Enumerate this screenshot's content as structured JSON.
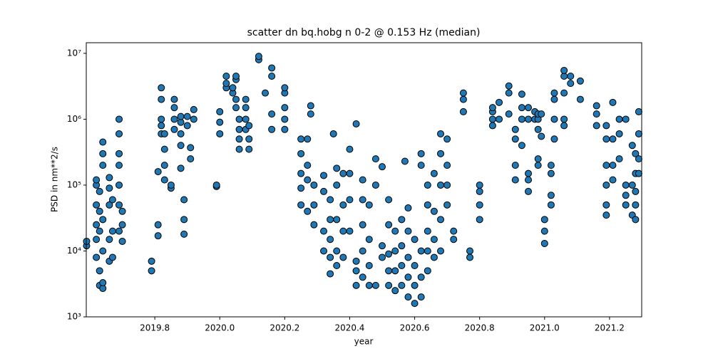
{
  "chart_data": {
    "type": "scatter",
    "title": "scatter dn bq.hobg n 0-2 @ 0.153 Hz (median)",
    "x_label": "year",
    "y_label": "PSD in nm**2/s",
    "yscale": "log",
    "color": "#1f77b4",
    "edgecolor": "#000000",
    "xlim": [
      2019.589,
      2021.299
    ],
    "ylim": [
      1000,
      14500000
    ],
    "xticks": [
      2019.8,
      {
        "value": 2020,
        "label": "2020.0"
      },
      2020.2,
      2020.4,
      2020.6,
      2020.8,
      {
        "value": 2021,
        "label": "2021.0"
      },
      2021.2
    ],
    "yticks": [
      {
        "value": 1000,
        "label": "10³"
      },
      {
        "value": 10000,
        "label": "10⁴"
      },
      {
        "value": 100000,
        "label": "10⁵"
      },
      {
        "value": 1000000,
        "label": "10⁶"
      },
      {
        "value": 10000000,
        "label": "10⁷"
      }
    ],
    "x": [
      2019.59,
      2019.59,
      2019.62,
      2019.62,
      2019.62,
      2019.62,
      2019.62,
      2019.62,
      2019.63,
      2019.63,
      2019.63,
      2019.63,
      2019.63,
      2019.64,
      2019.64,
      2019.64,
      2019.64,
      2019.64,
      2019.64,
      2019.64,
      2019.66,
      2019.66,
      2019.66,
      2019.66,
      2019.66,
      2019.67,
      2019.67,
      2019.67,
      2019.69,
      2019.69,
      2019.69,
      2019.69,
      2019.69,
      2019.69,
      2019.69,
      2019.7,
      2019.7,
      2019.7,
      2019.79,
      2019.79,
      2019.81,
      2019.81,
      2019.81,
      2019.82,
      2019.82,
      2019.82,
      2019.82,
      2019.82,
      2019.83,
      2019.83,
      2019.83,
      2019.83,
      2019.85,
      2019.85,
      2019.86,
      2019.86,
      2019.86,
      2019.86,
      2019.88,
      2019.88,
      2019.88,
      2019.88,
      2019.88,
      2019.89,
      2019.89,
      2019.89,
      2019.9,
      2019.9,
      2019.91,
      2019.91,
      2019.92,
      2019.92,
      2019.99,
      2019.99,
      2020.0,
      2020.0,
      2020.0,
      2020.02,
      2020.02,
      2020.02,
      2020.04,
      2020.04,
      2020.05,
      2020.05,
      2020.05,
      2020.05,
      2020.06,
      2020.06,
      2020.06,
      2020.06,
      2020.08,
      2020.08,
      2020.08,
      2020.08,
      2020.09,
      2020.09,
      2020.09,
      2020.12,
      2020.12,
      2020.14,
      2020.16,
      2020.16,
      2020.16,
      2020.16,
      2020.2,
      2020.2,
      2020.2,
      2020.2,
      2020.2,
      2020.25,
      2020.25,
      2020.25,
      2020.25,
      2020.25,
      2020.27,
      2020.27,
      2020.27,
      2020.27,
      2020.28,
      2020.28,
      2020.29,
      2020.29,
      2020.29,
      2020.32,
      2020.32,
      2020.32,
      2020.32,
      2020.34,
      2020.34,
      2020.34,
      2020.34,
      2020.34,
      2020.35,
      2020.36,
      2020.36,
      2020.36,
      2020.36,
      2020.36,
      2020.38,
      2020.38,
      2020.38,
      2020.38,
      2020.4,
      2020.4,
      2020.4,
      2020.4,
      2020.42,
      2020.42,
      2020.42,
      2020.42,
      2020.44,
      2020.44,
      2020.44,
      2020.44,
      2020.44,
      2020.46,
      2020.46,
      2020.46,
      2020.46,
      2020.48,
      2020.48,
      2020.48,
      2020.5,
      2020.5,
      2020.5,
      2020.52,
      2020.52,
      2020.52,
      2020.52,
      2020.52,
      2020.54,
      2020.54,
      2020.54,
      2020.54,
      2020.56,
      2020.56,
      2020.56,
      2020.56,
      2020.57,
      2020.58,
      2020.58,
      2020.58,
      2020.58,
      2020.58,
      2020.6,
      2020.6,
      2020.6,
      2020.6,
      2020.62,
      2020.62,
      2020.62,
      2020.62,
      2020.62,
      2020.64,
      2020.64,
      2020.64,
      2020.64,
      2020.64,
      2020.66,
      2020.66,
      2020.66,
      2020.66,
      2020.68,
      2020.68,
      2020.68,
      2020.68,
      2020.68,
      2020.7,
      2020.7,
      2020.7,
      2020.7,
      2020.72,
      2020.72,
      2020.75,
      2020.75,
      2020.75,
      2020.77,
      2020.77,
      2020.8,
      2020.8,
      2020.8,
      2020.8,
      2020.84,
      2020.84,
      2020.84,
      2020.84,
      2020.86,
      2020.86,
      2020.89,
      2020.89,
      2020.89,
      2020.91,
      2020.91,
      2020.91,
      2020.91,
      2020.93,
      2020.93,
      2020.93,
      2020.93,
      2020.95,
      2020.95,
      2020.95,
      2020.95,
      2020.95,
      2020.97,
      2020.97,
      2020.98,
      2020.98,
      2020.98,
      2020.98,
      2020.98,
      2021.0,
      2021.0,
      2021.0,
      2020.99,
      2020.99,
      2021.02,
      2021.02,
      2021.02,
      2021.02,
      2021.03,
      2021.03,
      2021.03,
      2021.03,
      2021.06,
      2021.06,
      2021.06,
      2021.06,
      2021.06,
      2021.08,
      2021.08,
      2021.11,
      2021.11,
      2021.16,
      2021.16,
      2021.16,
      2021.19,
      2021.19,
      2021.19,
      2021.19,
      2021.19,
      2021.19,
      2021.21,
      2021.21,
      2021.21,
      2021.21,
      2021.23,
      2021.23,
      2021.23,
      2021.25,
      2021.25,
      2021.25,
      2021.25,
      2021.27,
      2021.27,
      2021.27,
      2021.28,
      2021.28,
      2021.28,
      2021.28,
      2021.28,
      2021.29,
      2021.29,
      2021.29,
      2021.29
    ],
    "values": [
      12000,
      14000,
      8000,
      15000,
      25000,
      50000,
      100000,
      120000,
      3000,
      5000,
      20000,
      40000,
      80000,
      2700,
      3300,
      10000,
      30000,
      200000,
      300000,
      450000,
      7000,
      15000,
      50000,
      90000,
      130000,
      8000,
      20000,
      60000,
      20000,
      50000,
      100000,
      200000,
      300000,
      600000,
      1000000,
      14000,
      25000,
      40000,
      5000,
      7000,
      17000,
      25000,
      160000,
      600000,
      800000,
      1000000,
      2000000,
      3000000,
      120000,
      200000,
      350000,
      600000,
      90000,
      100000,
      700000,
      1000000,
      1500000,
      2000000,
      180000,
      400000,
      600000,
      900000,
      1100000,
      18000,
      30000,
      60000,
      800000,
      1100000,
      250000,
      370000,
      1000000,
      1400000,
      95000,
      100000,
      600000,
      900000,
      1300000,
      3000000,
      3500000,
      4500000,
      2500000,
      3000000,
      1500000,
      2000000,
      4000000,
      4500000,
      350000,
      500000,
      700000,
      1000000,
      700000,
      1000000,
      1500000,
      2000000,
      350000,
      500000,
      800000,
      8000000,
      9000000,
      2500000,
      700000,
      1200000,
      4500000,
      6000000,
      700000,
      1000000,
      1500000,
      2500000,
      3000000,
      50000,
      90000,
      150000,
      300000,
      500000,
      40000,
      120000,
      200000,
      500000,
      1200000,
      1600000,
      25000,
      50000,
      100000,
      10000,
      20000,
      80000,
      140000,
      4500,
      8000,
      15000,
      30000,
      60000,
      600000,
      6000,
      10000,
      30000,
      100000,
      180000,
      8000,
      20000,
      50000,
      150000,
      20000,
      60000,
      150000,
      350000,
      3000,
      5000,
      7000,
      850000,
      4000,
      10000,
      25000,
      60000,
      120000,
      3000,
      6000,
      15000,
      50000,
      3000,
      100000,
      250000,
      8000,
      12000,
      190000,
      3000,
      5000,
      9000,
      25000,
      60000,
      2500,
      5000,
      10000,
      20000,
      3000,
      6000,
      12000,
      30000,
      230000,
      2000,
      4000,
      8000,
      20000,
      45000,
      1600,
      3000,
      6000,
      15000,
      2000,
      4000,
      10000,
      200000,
      300000,
      5000,
      10000,
      20000,
      50000,
      100000,
      8000,
      15000,
      40000,
      150000,
      10000,
      30000,
      100000,
      300000,
      600000,
      50000,
      100000,
      200000,
      500000,
      15000,
      20000,
      1300000,
      2000000,
      2500000,
      8000,
      10000,
      30000,
      50000,
      80000,
      100000,
      800000,
      1000000,
      1300000,
      1500000,
      1000000,
      1800000,
      1200000,
      2500000,
      3200000,
      120000,
      200000,
      500000,
      700000,
      400000,
      1000000,
      1500000,
      2400000,
      80000,
      120000,
      150000,
      1000000,
      1500000,
      1000000,
      1300000,
      200000,
      250000,
      700000,
      1000000,
      1200000,
      13000,
      20000,
      30000,
      550000,
      1200000,
      50000,
      70000,
      150000,
      200000,
      500000,
      1000000,
      2000000,
      2500000,
      800000,
      1000000,
      2500000,
      4500000,
      5500000,
      3500000,
      4500000,
      2000000,
      3800000,
      800000,
      1200000,
      1600000,
      35000,
      50000,
      100000,
      200000,
      500000,
      800000,
      120000,
      200000,
      500000,
      1800000,
      250000,
      600000,
      1000000,
      50000,
      70000,
      100000,
      1000000,
      35000,
      100000,
      400000,
      30000,
      50000,
      80000,
      150000,
      300000,
      150000,
      250000,
      600000,
      1300000
    ]
  }
}
